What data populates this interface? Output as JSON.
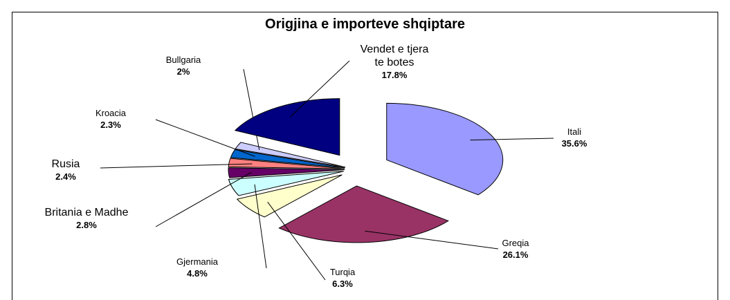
{
  "chart_data": {
    "type": "pie",
    "title": "Origjina e importeve shqiptare",
    "categories": [
      "Itali",
      "Greqia",
      "Turqia",
      "Gjermania",
      "Britania e Madhe",
      "Rusia",
      "Kroacia",
      "Bullgaria",
      "Vendet e tjera te botes"
    ],
    "values": [
      35.6,
      26.1,
      6.3,
      4.8,
      2.8,
      2.4,
      2.3,
      2,
      17.8
    ],
    "value_labels": [
      "35.6%",
      "26.1%",
      "6.3%",
      "4.8%",
      "2.8%",
      "2.4%",
      "2.3%",
      "2%",
      "17.8%"
    ],
    "colors": [
      "#9999ff",
      "#993366",
      "#ffffcc",
      "#ccffff",
      "#660066",
      "#ff8080",
      "#0066cc",
      "#ccccff",
      "#000080"
    ]
  }
}
